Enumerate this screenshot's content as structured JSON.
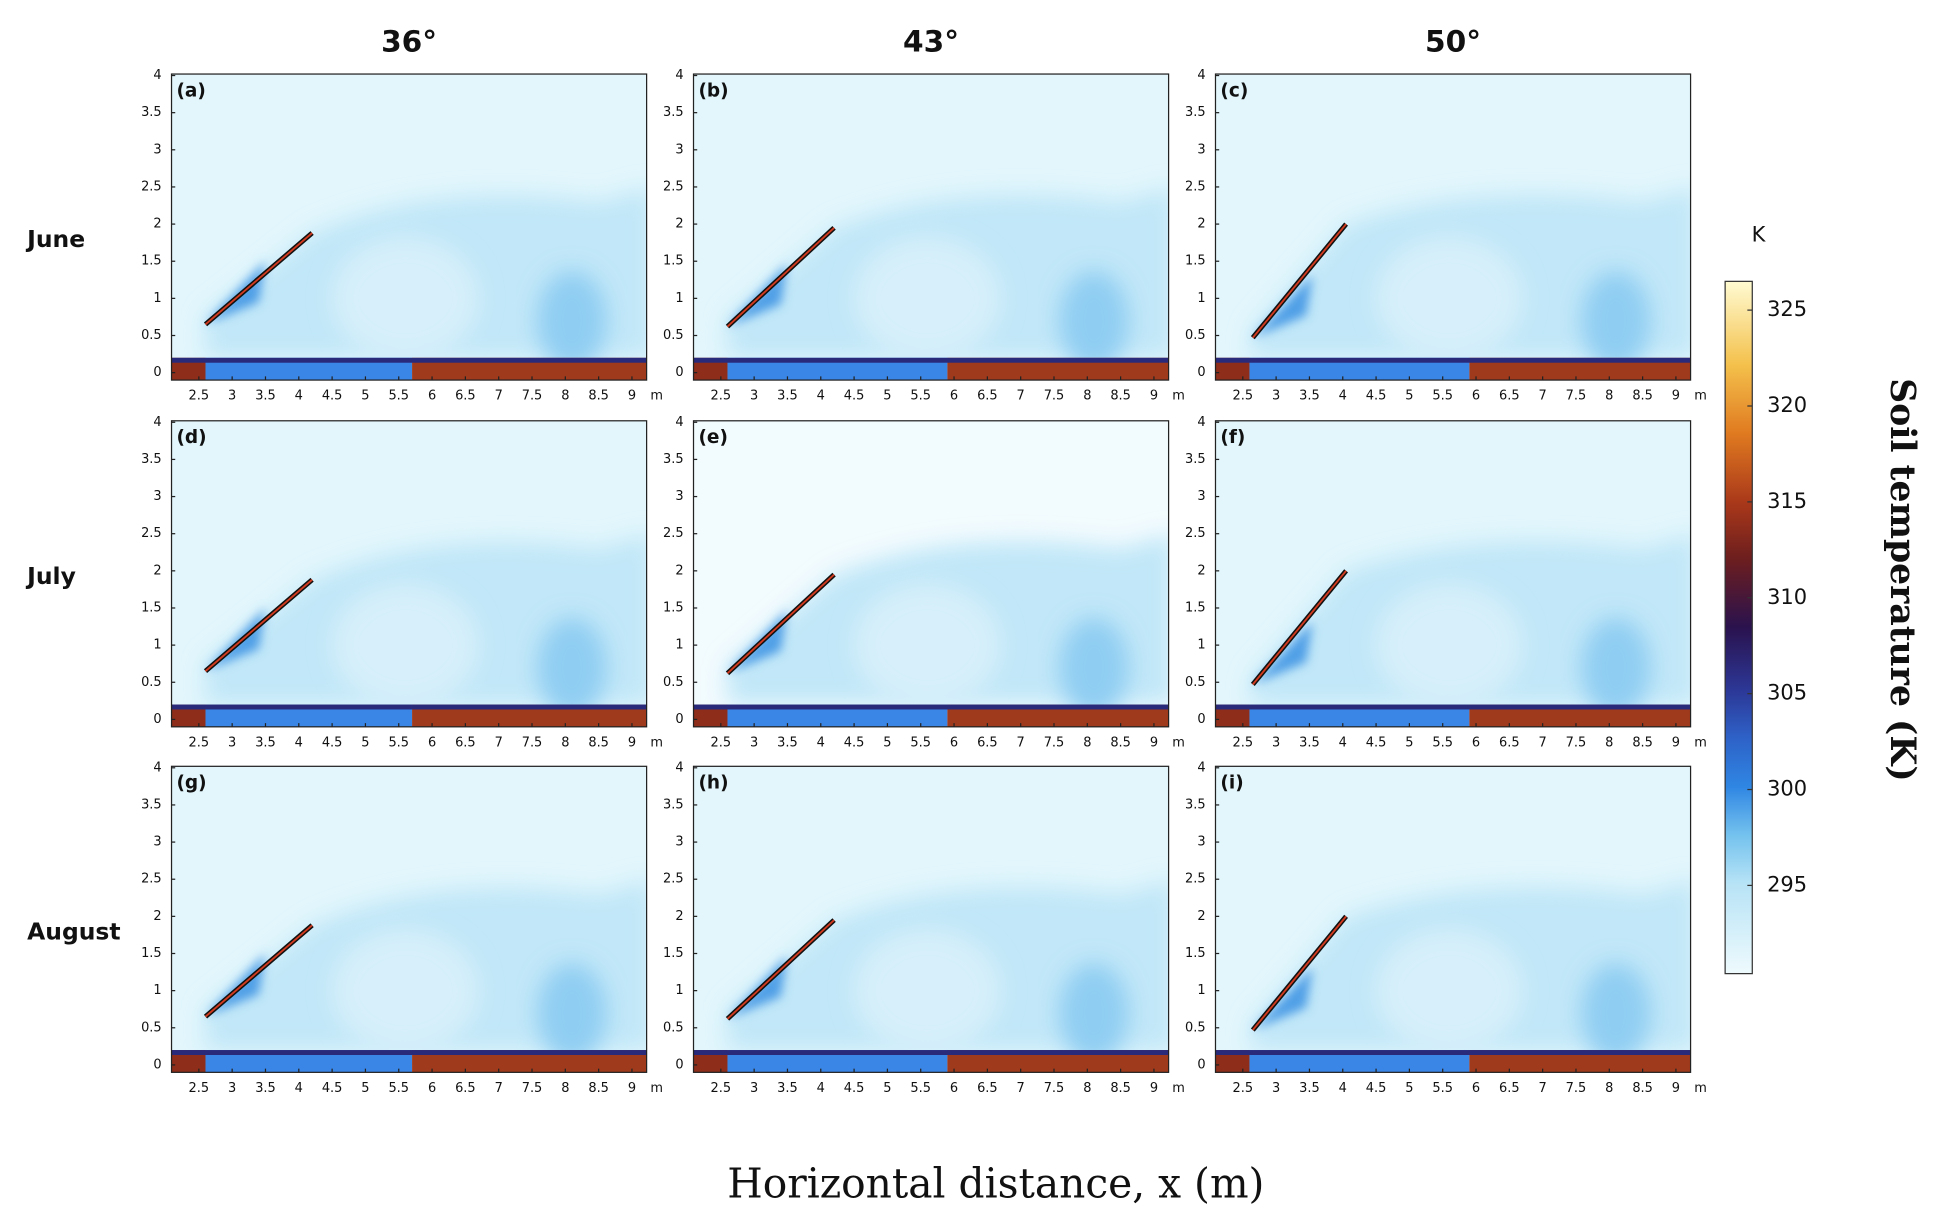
{
  "chart_data": {
    "type": "heatmap",
    "columns": [
      "36°",
      "43°",
      "50°"
    ],
    "rows": [
      "June",
      "July",
      "August"
    ],
    "panel_labels": [
      "(a)",
      "(b)",
      "(c)",
      "(d)",
      "(e)",
      "(f)",
      "(g)",
      "(h)",
      "(i)"
    ],
    "xlim": [
      2.09,
      9.22
    ],
    "xticks": [
      2.5,
      3,
      3.5,
      4,
      4.5,
      5,
      5.5,
      6,
      6.5,
      7,
      7.5,
      8,
      8.5,
      9
    ],
    "x_unit": "m",
    "ylim": [
      -0.1,
      4.02
    ],
    "yticks": [
      0,
      0.5,
      1,
      1.5,
      2,
      2.5,
      3,
      3.5,
      4
    ],
    "x_label": "Horizontal distance, x (m)",
    "colorbar": {
      "title": "K",
      "label": "Soil temperature (K)",
      "lim": [
        290.4,
        326.5
      ],
      "ticks": [
        295,
        300,
        305,
        310,
        315,
        320,
        325
      ]
    }
  }
}
